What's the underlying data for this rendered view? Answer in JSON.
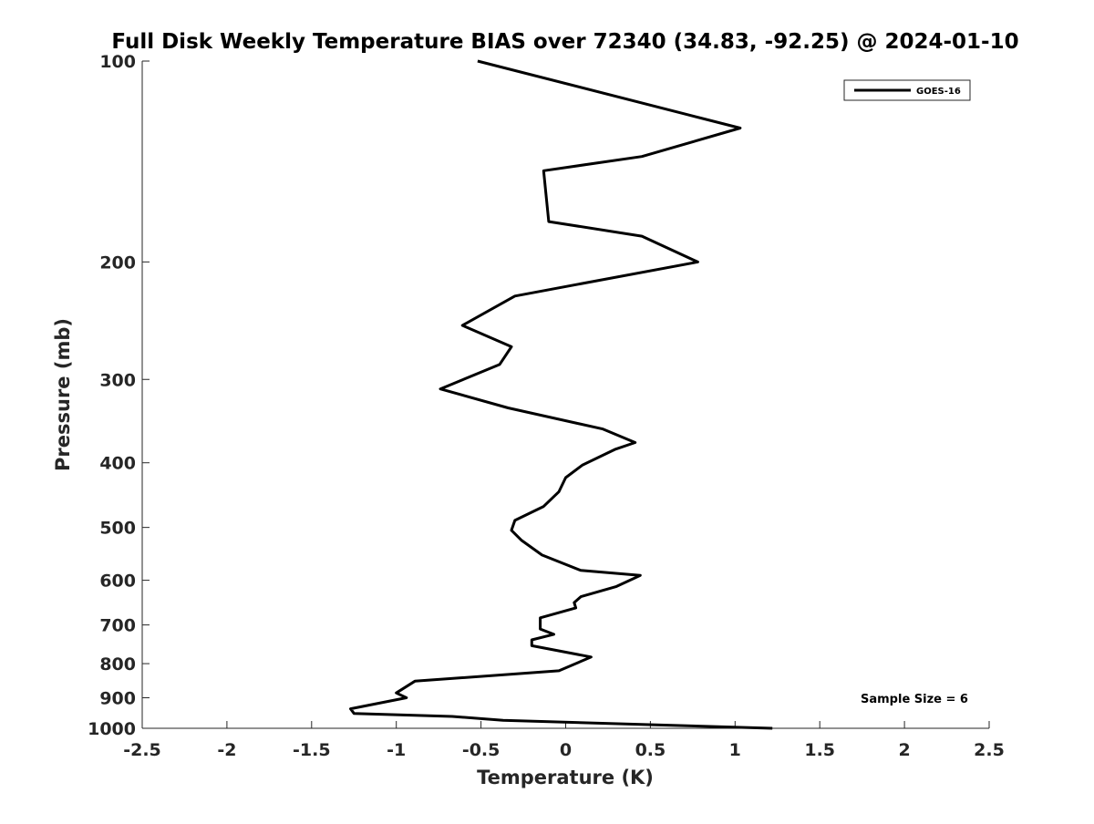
{
  "chart_data": {
    "type": "line",
    "title": "Full Disk Weekly Temperature BIAS over 72340 (34.83, -92.25) @ 2024-01-10",
    "xlabel": "Temperature (K)",
    "ylabel": "Pressure (mb)",
    "xlim": [
      -2.5,
      2.5
    ],
    "ylim": [
      100,
      1000
    ],
    "y_scale": "log",
    "y_reversed": true,
    "grid": false,
    "x_ticks": [
      -2.5,
      -2,
      -1.5,
      -1,
      -0.5,
      0,
      0.5,
      1,
      1.5,
      2,
      2.5
    ],
    "x_tick_labels": [
      "-2.5",
      "-2",
      "-1.5",
      "-1",
      "-0.5",
      "0",
      "0.5",
      "1",
      "1.5",
      "2",
      "2.5"
    ],
    "y_ticks": [
      100,
      200,
      300,
      400,
      500,
      600,
      700,
      800,
      900,
      1000
    ],
    "y_tick_labels": [
      "100",
      "200",
      "300",
      "400",
      "500",
      "600",
      "700",
      "800",
      "900",
      "1000"
    ],
    "legend": {
      "position": "top-right",
      "entries": [
        "GOES-16"
      ]
    },
    "annotation": "Sample Size = 6",
    "series": [
      {
        "name": "GOES-16",
        "color": "#000000",
        "x": [
          -0.52,
          1.03,
          0.45,
          -0.13,
          -0.1,
          0.45,
          0.78,
          -0.3,
          -0.61,
          -0.32,
          -0.39,
          -0.74,
          -0.34,
          0.22,
          0.41,
          0.29,
          0.1,
          0.0,
          -0.04,
          -0.13,
          -0.3,
          -0.32,
          -0.26,
          -0.14,
          0.09,
          0.44,
          0.3,
          0.09,
          0.05,
          0.06,
          -0.15,
          -0.15,
          -0.07,
          -0.2,
          -0.2,
          0.15,
          -0.04,
          -0.89,
          -1.0,
          -0.94,
          -1.27,
          -1.25,
          -0.67,
          -0.37,
          1.22
        ],
        "y": [
          100,
          126,
          139,
          146,
          174,
          183,
          200,
          225,
          249,
          268,
          285,
          310,
          331,
          356,
          373,
          382,
          403,
          421,
          442,
          465,
          488,
          505,
          523,
          550,
          580,
          590,
          613,
          635,
          648,
          660,
          683,
          710,
          723,
          737,
          752,
          782,
          820,
          850,
          885,
          900,
          935,
          950,
          960,
          973,
          1000
        ]
      }
    ]
  }
}
